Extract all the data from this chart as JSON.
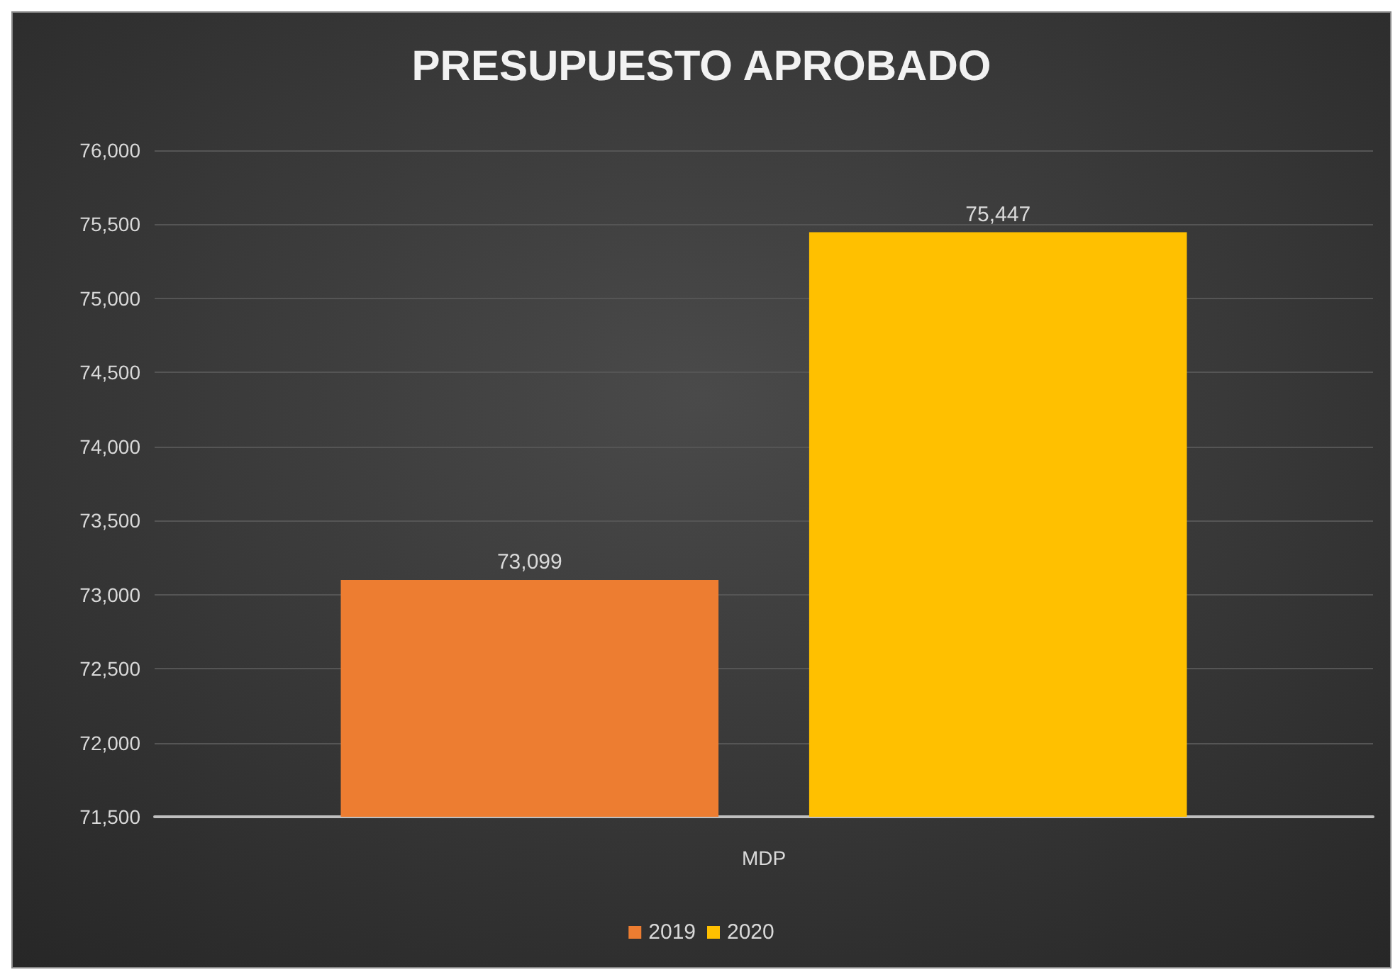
{
  "chart_data": {
    "type": "bar",
    "title": "PRESUPUESTO APROBADO",
    "categories": [
      "MDP"
    ],
    "series": [
      {
        "name": "2019",
        "color": "#ed7d31",
        "values": [
          73099
        ],
        "value_labels": [
          "73,099"
        ]
      },
      {
        "name": "2020",
        "color": "#ffc000",
        "values": [
          75447
        ],
        "value_labels": [
          "75,447"
        ]
      }
    ],
    "ylim": [
      71500,
      76000
    ],
    "yticks": [
      {
        "value": 71500,
        "label": "71,500"
      },
      {
        "value": 72000,
        "label": "72,000"
      },
      {
        "value": 72500,
        "label": "72,500"
      },
      {
        "value": 73000,
        "label": "73,000"
      },
      {
        "value": 73500,
        "label": "73,500"
      },
      {
        "value": 74000,
        "label": "74,000"
      },
      {
        "value": 74500,
        "label": "74,500"
      },
      {
        "value": 75000,
        "label": "75,000"
      },
      {
        "value": 75500,
        "label": "75,500"
      },
      {
        "value": 76000,
        "label": "76,000"
      }
    ],
    "grid": "y",
    "legend": "bottom"
  }
}
